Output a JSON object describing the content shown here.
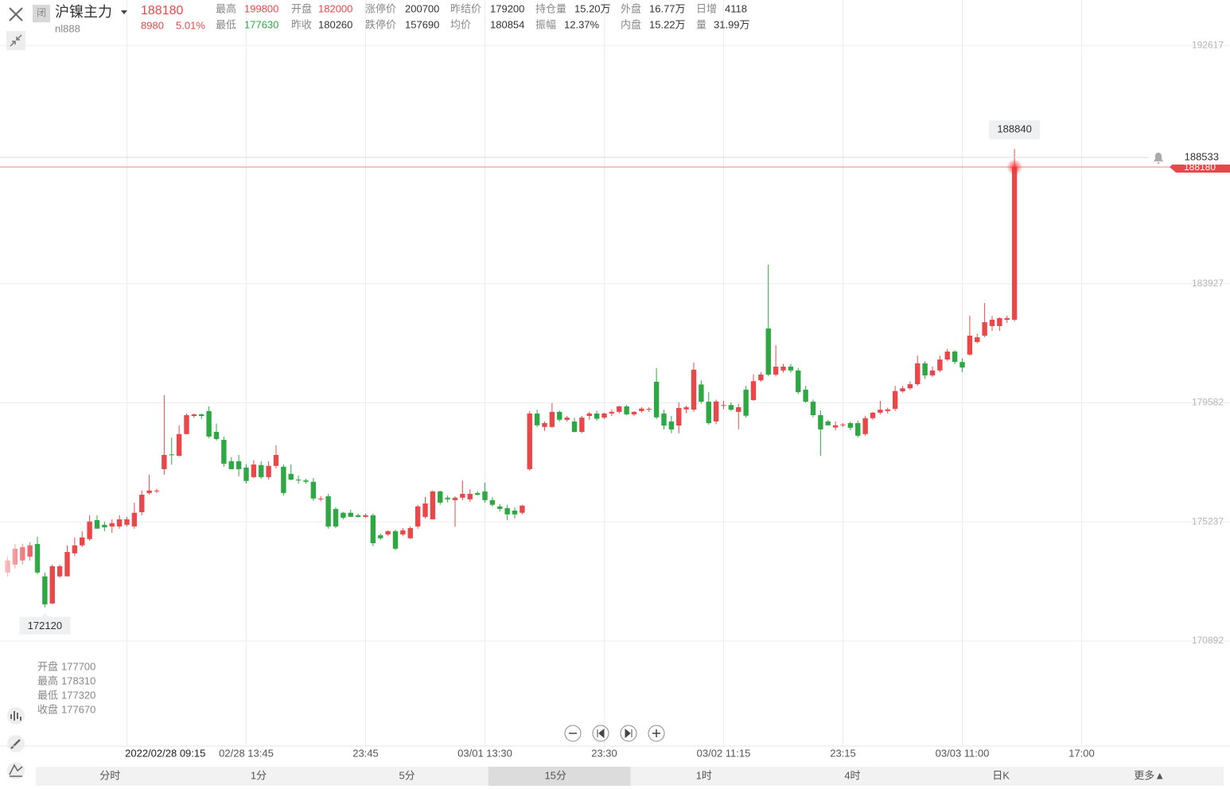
{
  "header": {
    "badge": "闭",
    "name": "沪镍主力",
    "code": "nl888",
    "change": "8980",
    "change_pct": "5.01%",
    "stats": [
      [
        {
          "label": "最高",
          "value": "199800"
        },
        {
          "label": "开盘",
          "value": "182000"
        },
        {
          "label": "涨停价",
          "value": "200700"
        },
        {
          "label": "昨结价",
          "value": "179200"
        },
        {
          "label": "持仓量",
          "value": "15.20万"
        },
        {
          "label": "外盘",
          "value": "16.77万"
        },
        {
          "label": "日增",
          "value": "4118"
        }
      ],
      [
        {
          "label": "最低",
          "value": "177630"
        },
        {
          "label": "昨收",
          "value": "180260"
        },
        {
          "label": "跌停价",
          "value": "157690"
        },
        {
          "label": "均价",
          "value": "180854"
        },
        {
          "label": "振幅",
          "value": "12.37%"
        },
        {
          "label": "内盘",
          "value": "15.22万"
        },
        {
          "label": "量",
          "value": "31.99万"
        }
      ]
    ]
  },
  "chart_data": {
    "type": "candlestick",
    "up_color": "#e8484a",
    "down_color": "#2ea842",
    "grid": true,
    "ylim": [
      169440,
      194070
    ],
    "yticks": [
      192617,
      183927,
      179582,
      175237,
      170892
    ],
    "alert_price": 188533,
    "crosshair_index": 22,
    "ohlc_labels": [
      "开盘",
      "最高",
      "最低",
      "收盘"
    ],
    "categories": [
      null,
      null,
      null,
      null,
      null,
      null,
      null,
      null,
      null,
      null,
      null,
      null,
      null,
      null,
      null,
      null,
      null,
      null,
      null,
      null,
      null,
      null,
      "2022/02/28 09:15",
      null,
      null,
      null,
      null,
      null,
      null,
      null,
      null,
      null,
      "02/28 13:45",
      null,
      null,
      null,
      null,
      null,
      null,
      null,
      null,
      null,
      null,
      null,
      null,
      null,
      null,
      null,
      "23:45",
      null,
      null,
      null,
      null,
      null,
      null,
      null,
      null,
      null,
      null,
      null,
      null,
      null,
      null,
      null,
      "03/01 13:30",
      null,
      null,
      null,
      null,
      null,
      null,
      null,
      null,
      null,
      null,
      null,
      null,
      null,
      null,
      null,
      "23:30",
      null,
      null,
      null,
      null,
      null,
      null,
      null,
      null,
      null,
      null,
      null,
      null,
      null,
      null,
      null,
      "03/02 11:15",
      null,
      null,
      null,
      null,
      null,
      null,
      null,
      null,
      null,
      null,
      null,
      null,
      null,
      null,
      null,
      "23:15",
      null,
      null,
      null,
      null,
      null,
      null,
      null,
      null,
      null,
      null,
      null,
      null,
      null,
      null,
      null,
      "03/03 11:00",
      null,
      null,
      null,
      null,
      null,
      null,
      null,
      null,
      null,
      null,
      null,
      null,
      null,
      null,
      null,
      "17:00"
    ],
    "candles": [
      [
        173390,
        173970,
        173240,
        173830
      ],
      [
        173680,
        174430,
        173540,
        174260
      ],
      [
        173830,
        174440,
        173680,
        174320
      ],
      [
        173970,
        174500,
        173830,
        174380
      ],
      [
        174430,
        174690,
        173330,
        173390
      ],
      [
        173250,
        173390,
        172120,
        172230
      ],
      [
        172260,
        173680,
        172230,
        173620
      ],
      [
        173250,
        173680,
        173200,
        173620
      ],
      [
        173250,
        174380,
        173250,
        174140
      ],
      [
        174090,
        174670,
        174000,
        174380
      ],
      [
        174380,
        174900,
        174320,
        174670
      ],
      [
        174610,
        175480,
        174550,
        175250
      ],
      [
        175300,
        175480,
        174990,
        174990
      ],
      [
        175130,
        175250,
        174900,
        175040
      ],
      [
        175070,
        175330,
        174840,
        175190
      ],
      [
        175070,
        175480,
        174990,
        175330
      ],
      [
        175130,
        175420,
        175070,
        175330
      ],
      [
        175070,
        175940,
        174990,
        175570
      ],
      [
        175590,
        176380,
        175480,
        176230
      ],
      [
        176290,
        176960,
        176230,
        176380
      ],
      [
        176350,
        176450,
        176290,
        176380
      ],
      [
        177160,
        179860,
        176960,
        177680
      ],
      [
        177700,
        178310,
        177320,
        177670
      ],
      [
        177650,
        178760,
        177620,
        178440
      ],
      [
        178440,
        179190,
        178440,
        179130
      ],
      [
        179100,
        179190,
        179040,
        179160
      ],
      [
        179160,
        179190,
        178990,
        179100
      ],
      [
        179280,
        179450,
        178290,
        178350
      ],
      [
        178520,
        178820,
        178200,
        178260
      ],
      [
        178230,
        178350,
        177250,
        177360
      ],
      [
        177450,
        177600,
        177160,
        177160
      ],
      [
        177450,
        177680,
        176900,
        177160
      ],
      [
        177220,
        177340,
        176640,
        176730
      ],
      [
        176870,
        177480,
        176840,
        177330
      ],
      [
        177310,
        177450,
        176810,
        176870
      ],
      [
        176870,
        177450,
        176780,
        177280
      ],
      [
        177280,
        178030,
        177190,
        177680
      ],
      [
        177250,
        177330,
        176200,
        176290
      ],
      [
        176990,
        177330,
        176750,
        176780
      ],
      [
        176780,
        176930,
        176640,
        176750
      ],
      [
        176750,
        176810,
        176640,
        176700
      ],
      [
        176700,
        176840,
        176000,
        176090
      ],
      [
        176060,
        176170,
        175990,
        176090
      ],
      [
        176170,
        176260,
        174990,
        175070
      ],
      [
        175710,
        175770,
        175010,
        175070
      ],
      [
        175570,
        175600,
        175330,
        175390
      ],
      [
        175570,
        175680,
        175420,
        175420
      ],
      [
        175480,
        175540,
        175390,
        175420
      ],
      [
        175420,
        175540,
        175390,
        175480
      ],
      [
        175480,
        175540,
        174350,
        174460
      ],
      [
        174750,
        174810,
        174580,
        174640
      ],
      [
        174780,
        174930,
        174720,
        174900
      ],
      [
        174900,
        174960,
        174200,
        174260
      ],
      [
        174780,
        175010,
        174720,
        174930
      ],
      [
        174640,
        175070,
        174610,
        175010
      ],
      [
        175070,
        175860,
        174990,
        175800
      ],
      [
        175420,
        176150,
        175360,
        175910
      ],
      [
        175330,
        176380,
        175330,
        176350
      ],
      [
        176350,
        176380,
        175860,
        175940
      ],
      [
        176120,
        176200,
        175950,
        176060
      ],
      [
        176030,
        176170,
        175060,
        176120
      ],
      [
        176120,
        176740,
        176030,
        176260
      ],
      [
        176060,
        176430,
        175970,
        176260
      ],
      [
        176290,
        176350,
        176200,
        176230
      ],
      [
        176350,
        176670,
        175940,
        176030
      ],
      [
        176030,
        176140,
        175800,
        175860
      ],
      [
        175800,
        175890,
        175620,
        175710
      ],
      [
        175740,
        175860,
        175300,
        175510
      ],
      [
        175650,
        175770,
        175360,
        175510
      ],
      [
        175570,
        175860,
        175510,
        175830
      ],
      [
        177160,
        179280,
        177100,
        179190
      ],
      [
        179190,
        179330,
        178700,
        178760
      ],
      [
        178700,
        178900,
        178560,
        178840
      ],
      [
        178700,
        179570,
        178670,
        179250
      ],
      [
        179250,
        179300,
        178900,
        178960
      ],
      [
        178960,
        179100,
        178900,
        179040
      ],
      [
        178900,
        179040,
        178500,
        178520
      ],
      [
        178520,
        179100,
        178470,
        179040
      ],
      [
        179100,
        179250,
        178960,
        179190
      ],
      [
        179190,
        179300,
        178930,
        179000
      ],
      [
        179040,
        179220,
        178990,
        179190
      ],
      [
        179190,
        179330,
        179100,
        179250
      ],
      [
        179250,
        179480,
        179190,
        179450
      ],
      [
        179450,
        179500,
        179130,
        179160
      ],
      [
        179160,
        179280,
        179100,
        179250
      ],
      [
        179280,
        179420,
        179220,
        179370
      ],
      [
        179330,
        179420,
        179250,
        179360
      ],
      [
        180350,
        180850,
        178990,
        179050
      ],
      [
        179190,
        179330,
        178610,
        178750
      ],
      [
        178900,
        179100,
        178470,
        178610
      ],
      [
        178750,
        179600,
        178470,
        179390
      ],
      [
        179340,
        179480,
        179200,
        179420
      ],
      [
        179330,
        181050,
        179250,
        180790
      ],
      [
        180250,
        180400,
        179550,
        179620
      ],
      [
        179620,
        179970,
        178780,
        178840
      ],
      [
        178900,
        179700,
        178800,
        179630
      ],
      [
        179480,
        179650,
        179350,
        179500
      ],
      [
        179500,
        179600,
        179280,
        179330
      ],
      [
        179250,
        179550,
        178610,
        179420
      ],
      [
        180060,
        180200,
        179040,
        179110
      ],
      [
        179680,
        180620,
        179650,
        180370
      ],
      [
        180400,
        180700,
        180350,
        180610
      ],
      [
        182290,
        184620,
        180550,
        180610
      ],
      [
        180610,
        181680,
        180550,
        180900
      ],
      [
        180760,
        181000,
        180680,
        180900
      ],
      [
        180900,
        181000,
        180680,
        180760
      ],
      [
        180760,
        180850,
        179900,
        179970
      ],
      [
        180060,
        180200,
        179580,
        179620
      ],
      [
        179620,
        179700,
        179050,
        179130
      ],
      [
        179130,
        179300,
        177650,
        178610
      ],
      [
        178900,
        178960,
        178760,
        178760
      ],
      [
        178680,
        178900,
        178580,
        178760
      ],
      [
        178760,
        178840,
        178700,
        178790
      ],
      [
        178840,
        178900,
        178580,
        178670
      ],
      [
        178840,
        178930,
        178320,
        178380
      ],
      [
        178440,
        179100,
        178380,
        179020
      ],
      [
        179020,
        179250,
        178960,
        179220
      ],
      [
        179220,
        179650,
        179160,
        179330
      ],
      [
        179280,
        179400,
        179190,
        179340
      ],
      [
        179360,
        180200,
        179280,
        180010
      ],
      [
        180000,
        180200,
        179950,
        180110
      ],
      [
        180110,
        180360,
        180050,
        180260
      ],
      [
        180260,
        181300,
        180200,
        181020
      ],
      [
        181020,
        181100,
        180450,
        180580
      ],
      [
        180580,
        180900,
        180520,
        180760
      ],
      [
        180760,
        181300,
        180700,
        181160
      ],
      [
        181160,
        181550,
        181100,
        181450
      ],
      [
        181450,
        181500,
        180990,
        181070
      ],
      [
        181070,
        181200,
        180700,
        180870
      ],
      [
        181340,
        182760,
        181300,
        182030
      ],
      [
        181800,
        182100,
        181750,
        181970
      ],
      [
        182030,
        183220,
        181970,
        182520
      ],
      [
        182380,
        182750,
        182200,
        182610
      ],
      [
        182380,
        182700,
        182200,
        182670
      ],
      [
        182610,
        182760,
        182500,
        182670
      ],
      [
        182610,
        188840,
        182550,
        188180
      ],
      null,
      null,
      null,
      null,
      null,
      null,
      null,
      null,
      null
    ]
  },
  "tabs": [
    "分时",
    "1分",
    "5分",
    "15分",
    "1时",
    "4时",
    "日K",
    "更多▲"
  ],
  "active_tab": 3
}
